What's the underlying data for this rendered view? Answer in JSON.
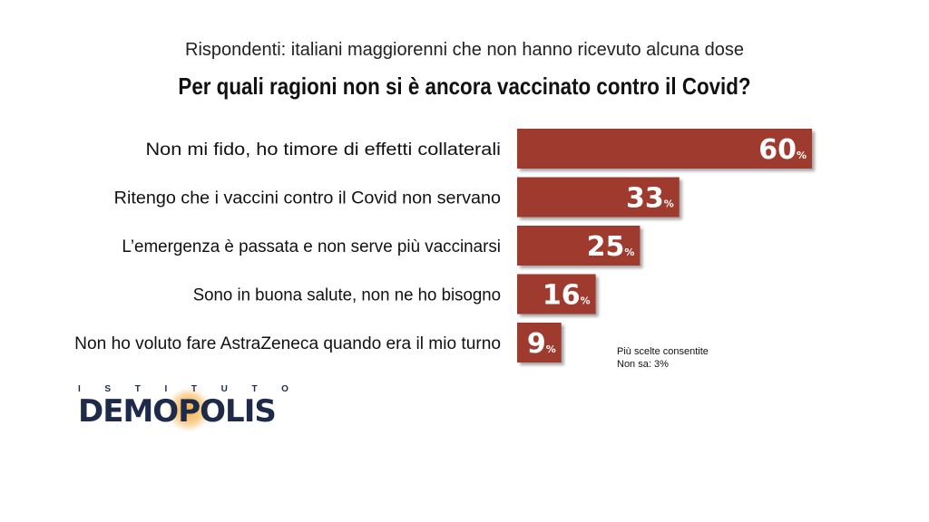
{
  "header": {
    "subtitle": "Rispondenti: italiani maggiorenni che non hanno ricevuto alcuna dose",
    "title": "Per quali ragioni non si è ancora vaccinato contro il Covid?"
  },
  "chart_data": {
    "type": "bar",
    "orientation": "horizontal",
    "title": "Per quali ragioni non si è ancora vaccinato contro il Covid?",
    "subtitle": "Rispondenti: italiani maggiorenni che non hanno ricevuto alcuna dose",
    "categories": [
      "Non mi fido, ho timore di effetti collaterali",
      "Ritengo che i vaccini contro il Covid non servano",
      "L’emergenza è passata e non serve più vaccinarsi",
      "Sono in buona salute, non ne ho bisogno",
      "Non ho voluto fare AstraZeneca quando era il mio turno"
    ],
    "values": [
      60,
      33,
      25,
      16,
      9
    ],
    "unit_label": "%",
    "xlim": [
      0,
      60
    ],
    "grid": false,
    "legend": "none",
    "bar_color": "#9e3a2f"
  },
  "notes": {
    "line1": "Più scelte consentite",
    "line2": "Non sa: 3%"
  },
  "logo": {
    "top_letters": [
      "I",
      "S",
      "T",
      "I",
      "T",
      "U",
      "T",
      "O"
    ],
    "name_part1": "DEM",
    "name_part2": "O",
    "name_part3": "POLIS"
  }
}
